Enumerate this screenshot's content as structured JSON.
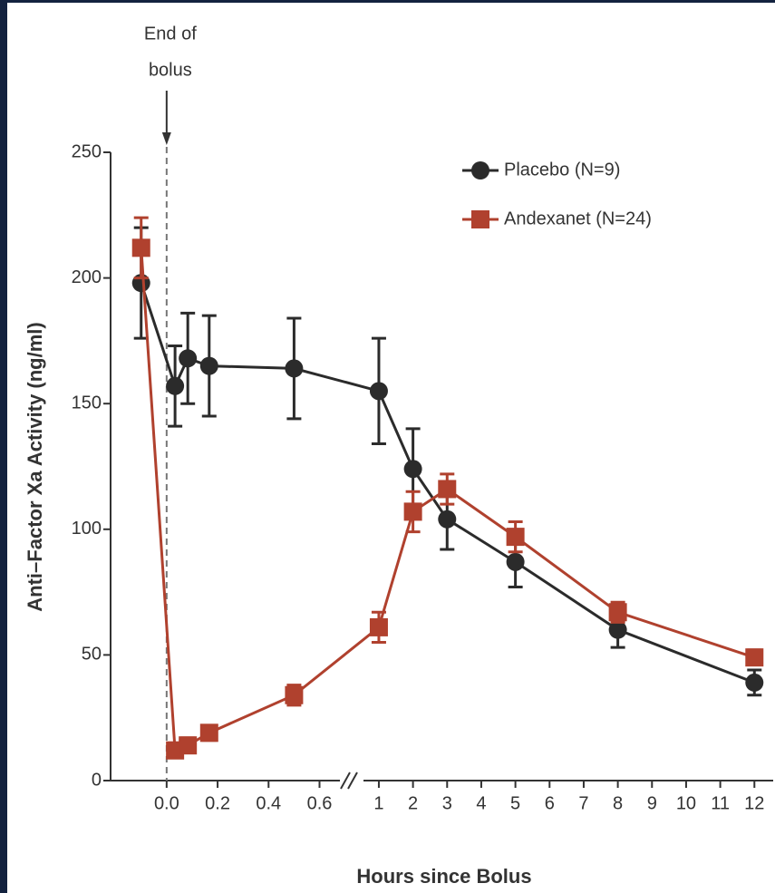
{
  "chart_data": {
    "type": "line",
    "annotation": {
      "lines": [
        "End of",
        "bolus"
      ],
      "x": 0
    },
    "x_label": "Hours since Bolus",
    "y_label": "Anti–Factor Xa Activity (ng/ml)",
    "x": [
      -0.1,
      0.033,
      0.083,
      0.167,
      0.5,
      1,
      2,
      3,
      5,
      8,
      12
    ],
    "series": [
      {
        "name": "Placebo (N=9)",
        "color": "#2b2b2b",
        "marker": "circle",
        "values": [
          198,
          157,
          168,
          165,
          164,
          155,
          124,
          104,
          87,
          60,
          39
        ],
        "errors": [
          22,
          16,
          18,
          20,
          20,
          21,
          16,
          12,
          10,
          7,
          5
        ]
      },
      {
        "name": "Andexanet (N=24)",
        "color": "#b0412e",
        "marker": "square",
        "values": [
          212,
          12,
          14,
          19,
          34,
          61,
          107,
          116,
          97,
          67,
          49
        ],
        "errors": [
          12,
          3,
          3,
          3,
          4,
          6,
          8,
          6,
          6,
          4,
          3
        ]
      }
    ],
    "xlim": [
      [
        -0.22,
        0.68
      ],
      [
        0.55,
        12.55
      ]
    ],
    "xticks": [
      {
        "value": 0,
        "label": "0.0"
      },
      0.2,
      0.4,
      0.6,
      1,
      2,
      3,
      4,
      5,
      6,
      7,
      8,
      9,
      10,
      11,
      12
    ],
    "ylim": [
      0,
      250
    ],
    "yticks": [
      0,
      50,
      100,
      150,
      200,
      250
    ],
    "legend": "upper right",
    "grid": false
  }
}
